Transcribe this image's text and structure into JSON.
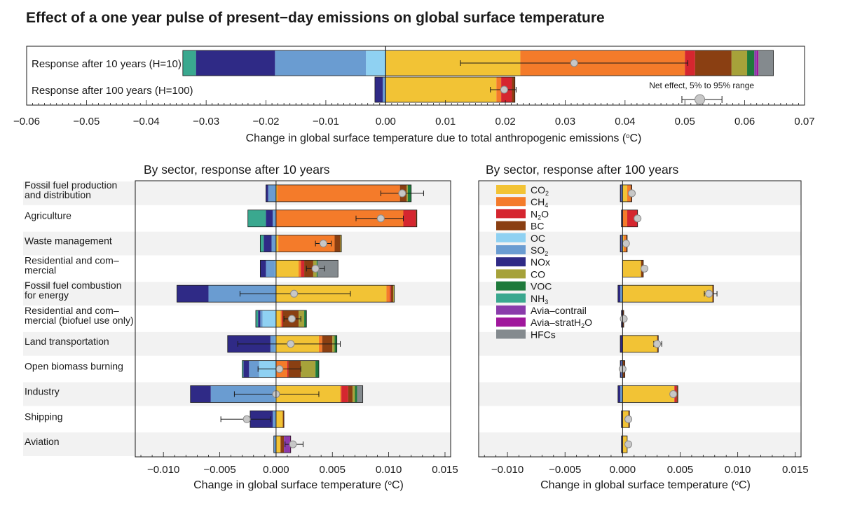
{
  "title": "Effect of a one year pulse of present−day emissions on global surface temperature",
  "colors": {
    "CO2": "#f2c335",
    "CH4": "#f47b2a",
    "N2O": "#d5262f",
    "BC": "#8a3f12",
    "OC": "#8fd1f2",
    "SO2": "#6a9cd1",
    "NOx": "#2f2a86",
    "CO": "#a6a23a",
    "VOC": "#1e7a3b",
    "NH3": "#3aa88f",
    "Avia-contrail": "#8a3bab",
    "Avia-stratH2O": "#a0179c",
    "HFCs": "#848a8e"
  },
  "chart_data": [
    {
      "type": "bar",
      "stacked": true,
      "orientation": "horizontal",
      "categories": [
        "Response after 10 years (H=10)",
        "Response after 100 years (H=100)"
      ],
      "xlabel": "Change in global surface temperature due to total anthropogenic emissions (°C)",
      "xlim": [
        -0.06,
        0.07
      ],
      "xticks": [
        "−0.06",
        "−0.05",
        "−0.04",
        "−0.03",
        "−0.02",
        "−0.01",
        "0.00",
        "0.01",
        "0.02",
        "0.03",
        "0.04",
        "0.05",
        "0.06",
        "0.07"
      ],
      "series": [
        {
          "name": "CO2",
          "values": [
            0.0225,
            0.0185
          ]
        },
        {
          "name": "CH4",
          "values": [
            0.0275,
            0.0008
          ]
        },
        {
          "name": "N2O",
          "values": [
            0.0017,
            0.0018
          ]
        },
        {
          "name": "BC",
          "values": [
            0.0061,
            0.0005
          ]
        },
        {
          "name": "OC",
          "values": [
            -0.0033,
            -0.0001
          ]
        },
        {
          "name": "SO2",
          "values": [
            -0.0152,
            -0.0004
          ]
        },
        {
          "name": "NOx",
          "values": [
            -0.0132,
            -0.0013
          ]
        },
        {
          "name": "CO",
          "values": [
            0.0026,
            0
          ]
        },
        {
          "name": "VOC",
          "values": [
            0.0012,
            0
          ]
        },
        {
          "name": "NH3",
          "values": [
            -0.0022,
            0
          ]
        },
        {
          "name": "Avia-contrail",
          "values": [
            0.0004,
            0
          ]
        },
        {
          "name": "Avia-stratH2O",
          "values": [
            0.0003,
            0
          ]
        },
        {
          "name": "HFCs",
          "values": [
            0.0025,
            0
          ]
        }
      ],
      "net_effect": [
        0.0315,
        0.0198
      ],
      "net_range": [
        [
          0.0125,
          0.0505
        ],
        [
          0.0175,
          0.0218
        ]
      ],
      "legend_label": "Net effect, 5% to 95% range"
    },
    {
      "type": "bar",
      "stacked": true,
      "orientation": "horizontal",
      "title": "By sector, response after 10 years",
      "xlabel": "Change in global surface temperature (°C)",
      "xlim": [
        -0.0125,
        0.0155
      ],
      "xticks": [
        "−0.010",
        "−0.005",
        "0.000",
        "0.005",
        "0.010",
        "0.015"
      ],
      "categories": [
        "Fossil fuel production and distribution",
        "Agriculture",
        "Waste management",
        "Residential and commercial",
        "Fossil fuel combustion for energy",
        "Residential and commercial (biofuel use only)",
        "Land transportation",
        "Open biomass burning",
        "Industry",
        "Shipping",
        "Aviation"
      ],
      "series": [
        {
          "name": "CO2",
          "values": [
            0.0001,
            0.0,
            0.0002,
            0.002,
            0.0098,
            0.0004,
            0.0038,
            0.0,
            0.0057,
            0.0006,
            0.0004
          ]
        },
        {
          "name": "CH4",
          "values": [
            0.0109,
            0.0113,
            0.005,
            0.0002,
            0.0003,
            0.0001,
            0.0003,
            0.001,
            0.0001,
            0,
            0
          ]
        },
        {
          "name": "N2O",
          "values": [
            0,
            0.0011,
            0,
            0.0003,
            0.0001,
            0.0001,
            0,
            0.0001,
            0.0006,
            0,
            0
          ]
        },
        {
          "name": "BC",
          "values": [
            0.0006,
            0.0001,
            0.0005,
            0.0008,
            0.0002,
            0.0014,
            0.0009,
            0.0011,
            0.0004,
            0.0001,
            0.0003
          ]
        },
        {
          "name": "OC",
          "values": [
            0,
            0,
            0,
            -0.0001,
            0,
            -0.0012,
            -0.0001,
            -0.0015,
            -0.0001,
            0,
            0
          ]
        },
        {
          "name": "SO2",
          "values": [
            -0.0007,
            -0.0003,
            -0.0004,
            -0.0008,
            -0.006,
            -0.0002,
            -0.0004,
            -0.0009,
            -0.0057,
            -0.0003,
            -0.0002
          ]
        },
        {
          "name": "NOx",
          "values": [
            -0.0002,
            -0.0006,
            -0.0007,
            -0.0005,
            -0.0028,
            -0.0002,
            -0.0038,
            -0.0005,
            -0.0018,
            -0.002,
            0
          ]
        },
        {
          "name": "CO",
          "values": [
            0.0001,
            0,
            0.0001,
            0.0003,
            0.0001,
            0.0005,
            0.0002,
            0.0013,
            0.0002,
            0,
            0
          ]
        },
        {
          "name": "VOC",
          "values": [
            0.0003,
            0,
            0,
            0.0001,
            0,
            0.0002,
            0.0002,
            0.0003,
            0.0002,
            0,
            0
          ]
        },
        {
          "name": "NH3",
          "values": [
            0,
            -0.0016,
            -0.0003,
            0,
            0,
            -0.0002,
            0,
            -0.0001,
            0,
            0,
            0
          ]
        },
        {
          "name": "Avia-contrail",
          "values": [
            0,
            0,
            0,
            0,
            0,
            0,
            0,
            0,
            0,
            0,
            0.0005
          ]
        },
        {
          "name": "Avia-stratH2O",
          "values": [
            0,
            0,
            0,
            0,
            0,
            0,
            0,
            0,
            0,
            0,
            0.0001
          ]
        },
        {
          "name": "HFCs",
          "values": [
            0,
            0,
            0,
            0.0018,
            0,
            0,
            0,
            0,
            0.0005,
            0,
            0
          ]
        }
      ],
      "net_effect": [
        0.0112,
        0.0093,
        0.0042,
        0.0035,
        0.0016,
        0.0014,
        0.0013,
        0.0003,
        0.0,
        -0.0026,
        0.0015
      ],
      "net_range": [
        [
          0.0093,
          0.0131
        ],
        [
          0.0071,
          0.0113
        ],
        [
          0.0035,
          0.0049
        ],
        [
          0.0027,
          0.0043
        ],
        [
          -0.0032,
          0.0066
        ],
        [
          0.0007,
          0.0022
        ],
        [
          -0.0034,
          0.0057
        ],
        [
          -0.0016,
          0.0022
        ],
        [
          -0.0037,
          0.0038
        ],
        [
          -0.0049,
          -0.0005
        ],
        [
          0.0008,
          0.0024
        ]
      ]
    },
    {
      "type": "bar",
      "stacked": true,
      "orientation": "horizontal",
      "title": "By sector, response after 100 years",
      "xlabel": "Change in global surface temperature (°C)",
      "xlim": [
        -0.0125,
        0.0155
      ],
      "xticks": [
        "−0.010",
        "−0.005",
        "0.000",
        "0.005",
        "0.010",
        "0.015"
      ],
      "categories": [
        "Fossil fuel production and distribution",
        "Agriculture",
        "Waste management",
        "Residential and commercial",
        "Fossil fuel combustion for energy",
        "Residential and commercial (biofuel use only)",
        "Land transportation",
        "Open biomass burning",
        "Industry",
        "Shipping",
        "Aviation"
      ],
      "series": [
        {
          "name": "CO2",
          "values": [
            0.0004,
            0.0,
            0.0001,
            0.0016,
            0.0078,
            0,
            0.003,
            0,
            0.0045,
            0.0005,
            0.0004
          ]
        },
        {
          "name": "CH4",
          "values": [
            0.0003,
            0.0004,
            0.0002,
            0,
            0,
            0,
            0,
            0,
            0,
            0,
            0
          ]
        },
        {
          "name": "N2O",
          "values": [
            0,
            0.0009,
            0,
            0,
            0,
            0,
            0,
            0,
            0.0002,
            0,
            0
          ]
        },
        {
          "name": "BC",
          "values": [
            0.0001,
            0,
            0.0001,
            0.0002,
            0.0001,
            0.0001,
            0.0001,
            0.0002,
            0.0001,
            0.0001,
            0
          ]
        },
        {
          "name": "OC",
          "values": [
            0,
            0,
            0,
            0,
            0,
            0,
            0,
            0,
            0,
            0,
            0
          ]
        },
        {
          "name": "SO2",
          "values": [
            -0.0001,
            0,
            -0.0001,
            0,
            -0.0002,
            0,
            0,
            -0.0001,
            -0.0002,
            0,
            0
          ]
        },
        {
          "name": "NOx",
          "values": [
            -0.0001,
            -0.0001,
            -0.0001,
            0,
            -0.0002,
            -0.0001,
            -0.0002,
            -0.0001,
            -0.0002,
            -0.0001,
            -0.0001
          ]
        },
        {
          "name": "CO",
          "values": [
            0,
            0,
            0,
            0,
            0,
            0,
            0,
            0,
            0,
            0,
            0
          ]
        },
        {
          "name": "VOC",
          "values": [
            0,
            0,
            0,
            0,
            0,
            0,
            0,
            0,
            0,
            0,
            0
          ]
        },
        {
          "name": "NH3",
          "values": [
            0,
            0,
            0,
            0,
            0,
            0,
            0,
            0,
            0,
            0,
            0
          ]
        },
        {
          "name": "Avia-contrail",
          "values": [
            0,
            0,
            0,
            0,
            0,
            0,
            0,
            0,
            0,
            0,
            0
          ]
        },
        {
          "name": "Avia-stratH2O",
          "values": [
            0,
            0,
            0,
            0,
            0,
            0,
            0,
            0,
            0,
            0,
            0
          ]
        },
        {
          "name": "HFCs",
          "values": [
            0,
            0,
            0,
            0,
            0,
            0,
            0,
            0,
            0,
            0,
            0
          ]
        }
      ],
      "net_effect": [
        0.0008,
        0.0013,
        0.0003,
        0.0019,
        0.0075,
        0.0001,
        0.003,
        0.0,
        0.0044,
        0.0005,
        0.0005
      ],
      "net_range": [
        [
          0.0007,
          0.0009
        ],
        [
          0.0012,
          0.0014
        ],
        [
          0.0002,
          0.0004
        ],
        [
          0.0018,
          0.002
        ],
        [
          0.0071,
          0.0082
        ],
        [
          0.0,
          0.0002
        ],
        [
          0.0027,
          0.0034
        ],
        [
          -0.0001,
          0.0001
        ],
        [
          0.0042,
          0.0046
        ],
        [
          0.0004,
          0.0006
        ],
        [
          0.0004,
          0.0006
        ]
      ]
    }
  ],
  "legend": [
    {
      "key": "CO2",
      "label": "CO",
      "sub": "2"
    },
    {
      "key": "CH4",
      "label": "CH",
      "sub": "4"
    },
    {
      "key": "N2O",
      "label": "N",
      "sub": "2",
      "tail": "O"
    },
    {
      "key": "BC",
      "label": "BC"
    },
    {
      "key": "OC",
      "label": "OC"
    },
    {
      "key": "SO2",
      "label": "SO",
      "sub": "2"
    },
    {
      "key": "NOx",
      "label": "NOx"
    },
    {
      "key": "CO",
      "label": "CO"
    },
    {
      "key": "VOC",
      "label": "VOC"
    },
    {
      "key": "NH3",
      "label": "NH",
      "sub": "3"
    },
    {
      "key": "Avia-contrail",
      "label": "Avia–contrail"
    },
    {
      "key": "Avia-stratH2O",
      "label": "Avia–stratH",
      "sub": "2",
      "tail": "O"
    },
    {
      "key": "HFCs",
      "label": "HFCs"
    }
  ],
  "sector_labels": [
    [
      "Fossil fuel production",
      "and distribution"
    ],
    [
      "Agriculture"
    ],
    [
      "Waste management"
    ],
    [
      "Residential and com–",
      "mercial"
    ],
    [
      "Fossil fuel combustion",
      "for energy"
    ],
    [
      "Residential and com–",
      "mercial (biofuel use only)"
    ],
    [
      "Land transportation"
    ],
    [
      "Open biomass burning"
    ],
    [
      "Industry"
    ],
    [
      "Shipping"
    ],
    [
      "Aviation"
    ]
  ]
}
